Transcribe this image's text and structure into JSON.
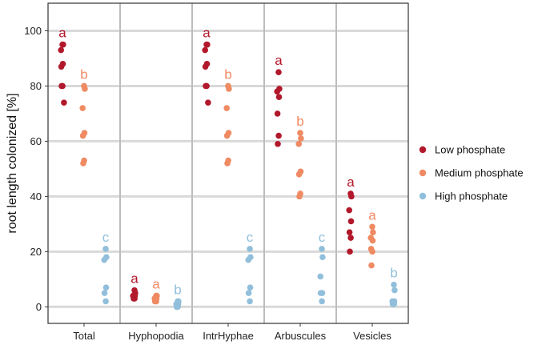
{
  "chart_data": {
    "type": "scatter",
    "ylabel": "root length colonized [%]",
    "xlabel": "",
    "ylim": [
      -6,
      110
    ],
    "yticks": [
      0,
      20,
      40,
      60,
      80,
      100
    ],
    "categories": [
      "Total",
      "Hyphopodia",
      "IntrHyphae",
      "Arbuscules",
      "Vesicles"
    ],
    "grid": true,
    "legend_position": "right",
    "series": [
      {
        "name": "Low phosphate",
        "color": "#b2182b",
        "letters": [
          "a",
          "a",
          "a",
          "a",
          "a"
        ],
        "values": [
          [
            95,
            95,
            93,
            88,
            87,
            80,
            80,
            74
          ],
          [
            6,
            5,
            4,
            4,
            4,
            3,
            3
          ],
          [
            95,
            95,
            93,
            88,
            87,
            80,
            80,
            74
          ],
          [
            85,
            79,
            78,
            76,
            70,
            62,
            59
          ],
          [
            41,
            40,
            35,
            31,
            27,
            25,
            20
          ]
        ]
      },
      {
        "name": "Medium phosphate",
        "color": "#ef8a62",
        "letters": [
          "b",
          "a",
          "b",
          "b",
          "a"
        ],
        "values": [
          [
            80,
            79,
            72,
            63,
            62,
            53,
            52
          ],
          [
            4,
            4,
            3,
            3,
            2,
            2
          ],
          [
            80,
            79,
            72,
            63,
            62,
            53,
            52
          ],
          [
            63,
            61,
            59,
            49,
            48,
            41,
            40
          ],
          [
            29,
            27,
            25,
            24,
            21,
            20,
            15
          ]
        ]
      },
      {
        "name": "High phosphate",
        "color": "#91bfdb",
        "letters": [
          "c",
          "b",
          "c",
          "c",
          "b"
        ],
        "values": [
          [
            21,
            18,
            17,
            7,
            5,
            2
          ],
          [
            2,
            2,
            1,
            1,
            0,
            0
          ],
          [
            21,
            18,
            17,
            7,
            5,
            2
          ],
          [
            21,
            18,
            11,
            5,
            5,
            2
          ],
          [
            8,
            6,
            2,
            2,
            1,
            1
          ]
        ]
      }
    ]
  }
}
